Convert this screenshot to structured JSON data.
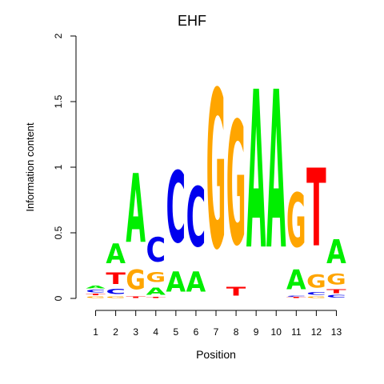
{
  "chart_data": {
    "type": "sequence-logo",
    "title": "EHF",
    "xlabel": "Position",
    "ylabel": "Information content",
    "ylim": [
      0,
      2
    ],
    "y_ticks": [
      "0",
      "0.5",
      "1",
      "1.5",
      "2"
    ],
    "y_tick_values": [
      0,
      0.5,
      1,
      1.5,
      2
    ],
    "x_ticks": [
      "1",
      "2",
      "3",
      "4",
      "5",
      "6",
      "7",
      "8",
      "9",
      "10",
      "11",
      "12",
      "13"
    ],
    "colors": {
      "A": "#00ee00",
      "C": "#0000ee",
      "G": "#ffa500",
      "T": "#ff0000"
    },
    "positions": [
      {
        "pos": "1",
        "stack": [
          [
            "G",
            0.02
          ],
          [
            "T",
            0.02
          ],
          [
            "C",
            0.03
          ],
          [
            "A",
            0.03
          ]
        ]
      },
      {
        "pos": "2",
        "stack": [
          [
            "G",
            0.02
          ],
          [
            "C",
            0.06
          ],
          [
            "T",
            0.14
          ],
          [
            "A",
            0.24
          ]
        ]
      },
      {
        "pos": "3",
        "stack": [
          [
            "T",
            0.02
          ],
          [
            "G",
            0.24
          ],
          [
            "A",
            0.84
          ]
        ]
      },
      {
        "pos": "4",
        "stack": [
          [
            "T",
            0.01
          ],
          [
            "A",
            0.09
          ],
          [
            "G",
            0.12
          ],
          [
            "C",
            0.3
          ]
        ]
      },
      {
        "pos": "5",
        "stack": [
          [
            "A",
            0.25
          ],
          [
            "C",
            0.87
          ]
        ]
      },
      {
        "pos": "6",
        "stack": [
          [
            "A",
            0.25
          ],
          [
            "C",
            0.73
          ]
        ]
      },
      {
        "pos": "7",
        "stack": [
          [
            "G",
            1.93
          ]
        ]
      },
      {
        "pos": "8",
        "stack": [
          [
            "T",
            0.11
          ],
          [
            "G",
            1.51
          ]
        ]
      },
      {
        "pos": "9",
        "stack": [
          [
            "A",
            1.93
          ]
        ]
      },
      {
        "pos": "10",
        "stack": [
          [
            "A",
            1.93
          ]
        ]
      },
      {
        "pos": "11",
        "stack": [
          [
            "T",
            0.01
          ],
          [
            "C",
            0.01
          ],
          [
            "A",
            0.24
          ],
          [
            "G",
            0.66
          ]
        ]
      },
      {
        "pos": "12",
        "stack": [
          [
            "G",
            0.02
          ],
          [
            "C",
            0.03
          ],
          [
            "G",
            0.16
          ],
          [
            "T",
            0.95
          ]
        ]
      },
      {
        "pos": "13",
        "stack": [
          [
            "C",
            0.03
          ],
          [
            "T",
            0.05
          ],
          [
            "G",
            0.13
          ],
          [
            "A",
            0.29
          ]
        ]
      }
    ]
  }
}
